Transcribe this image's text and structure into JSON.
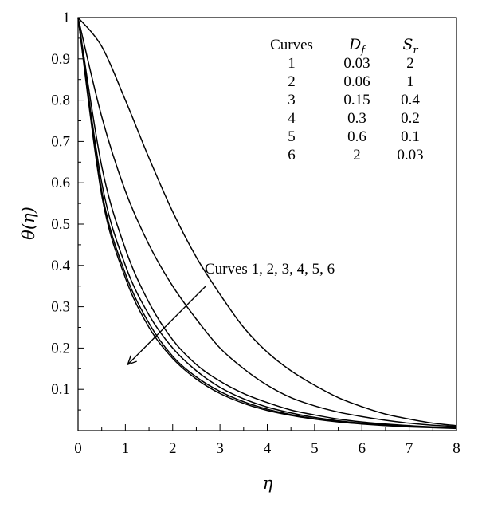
{
  "chart_data": {
    "type": "line",
    "xlabel": "η",
    "ylabel": "θ(η)",
    "xlim": [
      0,
      8
    ],
    "ylim": [
      0,
      1
    ],
    "xticks": [
      "0",
      "1",
      "2",
      "3",
      "4",
      "5",
      "6",
      "7",
      "8"
    ],
    "yticks": [
      "0.1",
      "0.2",
      "0.3",
      "0.4",
      "0.5",
      "0.6",
      "0.7",
      "0.8",
      "0.9",
      "1"
    ],
    "grid": false,
    "x": [
      0,
      0.5,
      1,
      1.5,
      2,
      2.5,
      3,
      3.5,
      4,
      4.5,
      5,
      5.5,
      6,
      6.5,
      7,
      7.5,
      8
    ],
    "series": [
      {
        "name": "1",
        "values": [
          1.0,
          0.93,
          0.8,
          0.66,
          0.53,
          0.42,
          0.33,
          0.25,
          0.19,
          0.145,
          0.11,
          0.08,
          0.058,
          0.04,
          0.028,
          0.018,
          0.012
        ]
      },
      {
        "name": "2",
        "values": [
          1.0,
          0.76,
          0.58,
          0.45,
          0.35,
          0.27,
          0.2,
          0.15,
          0.11,
          0.08,
          0.06,
          0.045,
          0.034,
          0.025,
          0.018,
          0.013,
          0.01
        ]
      },
      {
        "name": "3",
        "values": [
          1.0,
          0.64,
          0.44,
          0.31,
          0.22,
          0.16,
          0.12,
          0.09,
          0.068,
          0.05,
          0.038,
          0.028,
          0.021,
          0.016,
          0.012,
          0.009,
          0.007
        ]
      },
      {
        "name": "4",
        "values": [
          1.0,
          0.6,
          0.4,
          0.28,
          0.2,
          0.145,
          0.105,
          0.077,
          0.057,
          0.043,
          0.032,
          0.024,
          0.018,
          0.014,
          0.011,
          0.008,
          0.006
        ]
      },
      {
        "name": "5",
        "values": [
          1.0,
          0.58,
          0.38,
          0.26,
          0.18,
          0.13,
          0.095,
          0.07,
          0.052,
          0.039,
          0.029,
          0.022,
          0.017,
          0.013,
          0.01,
          0.008,
          0.006
        ]
      },
      {
        "name": "6",
        "values": [
          1.0,
          0.57,
          0.37,
          0.25,
          0.175,
          0.125,
          0.09,
          0.066,
          0.049,
          0.037,
          0.028,
          0.021,
          0.016,
          0.012,
          0.009,
          0.007,
          0.005
        ]
      }
    ],
    "table": {
      "header_curves": "Curves",
      "header_df_main": "D",
      "header_df_sub": "f",
      "header_sr_main": "S",
      "header_sr_sub": "r",
      "rows": [
        [
          "1",
          "0.03",
          "2"
        ],
        [
          "2",
          "0.06",
          "1"
        ],
        [
          "3",
          "0.15",
          "0.4"
        ],
        [
          "4",
          "0.3",
          "0.2"
        ],
        [
          "5",
          "0.6",
          "0.1"
        ],
        [
          "6",
          "2",
          "0.03"
        ]
      ]
    },
    "annotation": {
      "text": "Curves 1, 2, 3, 4, 5, 6",
      "arrow_from": [
        2.7,
        0.35
      ],
      "arrow_to": [
        1.05,
        0.16
      ]
    }
  }
}
